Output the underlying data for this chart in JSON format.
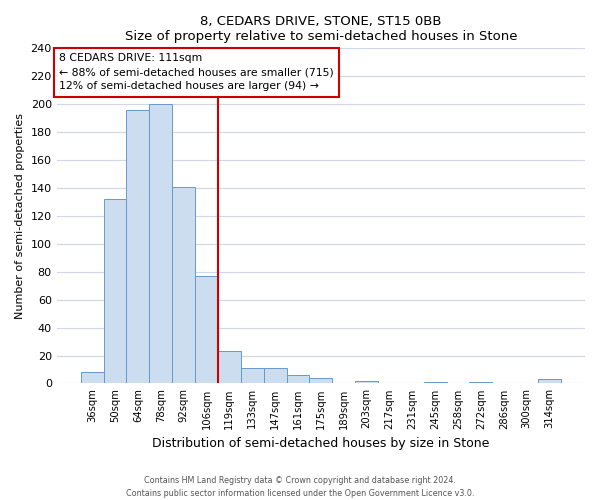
{
  "title": "8, CEDARS DRIVE, STONE, ST15 0BB",
  "subtitle": "Size of property relative to semi-detached houses in Stone",
  "xlabel": "Distribution of semi-detached houses by size in Stone",
  "ylabel": "Number of semi-detached properties",
  "bar_labels": [
    "36sqm",
    "50sqm",
    "64sqm",
    "78sqm",
    "92sqm",
    "106sqm",
    "119sqm",
    "133sqm",
    "147sqm",
    "161sqm",
    "175sqm",
    "189sqm",
    "203sqm",
    "217sqm",
    "231sqm",
    "245sqm",
    "258sqm",
    "272sqm",
    "286sqm",
    "300sqm",
    "314sqm"
  ],
  "bar_values": [
    8,
    132,
    196,
    200,
    141,
    77,
    23,
    11,
    11,
    6,
    4,
    0,
    2,
    0,
    0,
    1,
    0,
    1,
    0,
    0,
    3
  ],
  "bar_color": "#ccddf0",
  "bar_edge_color": "#6699cc",
  "vline_x": 6.0,
  "vline_color": "#cc0000",
  "annotation_title": "8 CEDARS DRIVE: 111sqm",
  "annotation_line1": "← 88% of semi-detached houses are smaller (715)",
  "annotation_line2": "12% of semi-detached houses are larger (94) →",
  "annotation_box_edge": "#cc0000",
  "ylim": [
    0,
    240
  ],
  "yticks": [
    0,
    20,
    40,
    60,
    80,
    100,
    120,
    140,
    160,
    180,
    200,
    220,
    240
  ],
  "footer1": "Contains HM Land Registry data © Crown copyright and database right 2024.",
  "footer2": "Contains public sector information licensed under the Open Government Licence v3.0.",
  "fig_bg_color": "#ffffff",
  "plot_bg_color": "#ffffff",
  "grid_color": "#d0d8e8"
}
